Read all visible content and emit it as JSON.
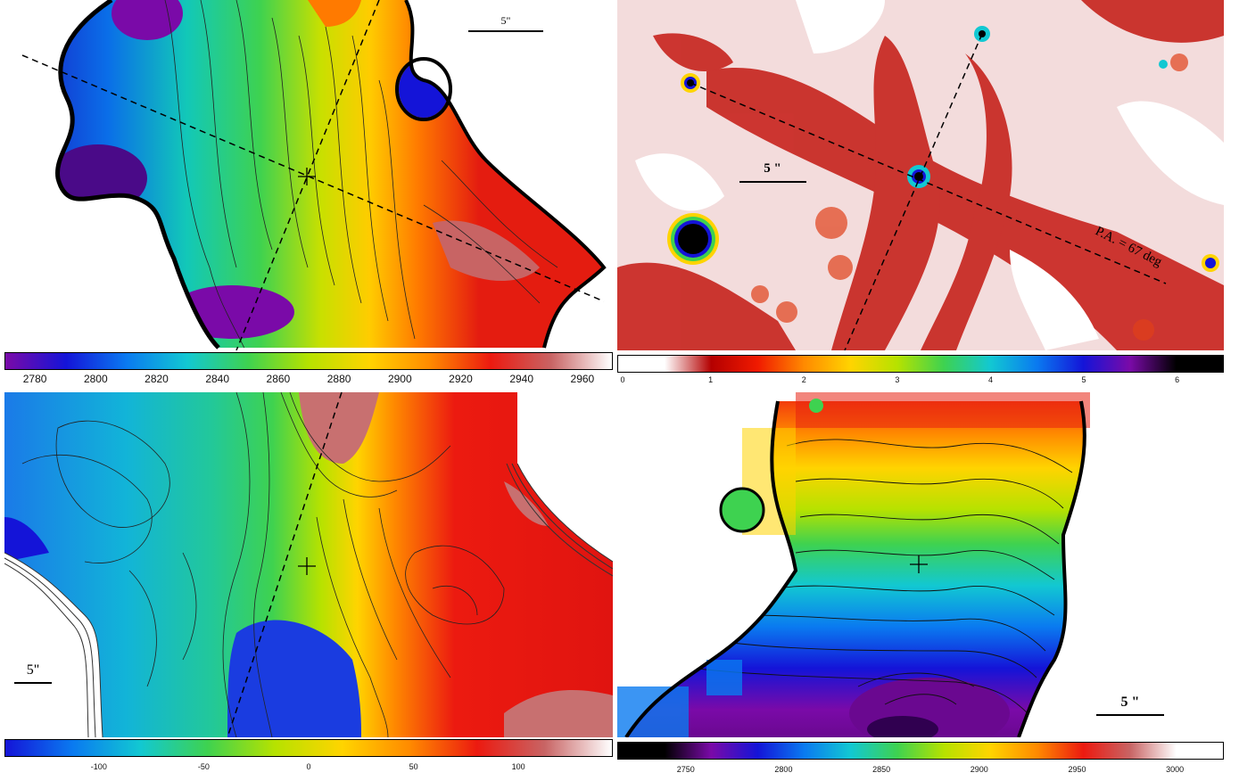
{
  "panels": [
    {
      "id": "top-left",
      "scale_label": "5\"",
      "colorbar": {
        "ticks": [
          "2780",
          "2800",
          "2820",
          "2840",
          "2860",
          "2880",
          "2900",
          "2920",
          "2940",
          "2960"
        ],
        "min": 2770,
        "max": 2970,
        "stops": [
          "#7a0aa8",
          "#1414d8",
          "#0a7af0",
          "#12c8d2",
          "#3ed250",
          "#b6e200",
          "#ffd400",
          "#ff8a00",
          "#ec1a10",
          "#c86464",
          "#ffffff"
        ]
      }
    },
    {
      "id": "top-right",
      "scale_label": "5 \"",
      "annotation": "P.A. = 67 deg",
      "colorbar": {
        "ticks": [
          "0",
          "1",
          "2",
          "3",
          "4",
          "5",
          "6"
        ],
        "min": 0,
        "max": 6.5,
        "stops": [
          "#ffffff",
          "#ffffff",
          "#b40000",
          "#f01a00",
          "#ff8a00",
          "#ffd400",
          "#b6e200",
          "#3ed250",
          "#12c8d2",
          "#0a7af0",
          "#1414d8",
          "#7a0aa8",
          "#000000",
          "#000000"
        ]
      }
    },
    {
      "id": "bottom-left",
      "scale_label": "5\"",
      "colorbar": {
        "ticks": [
          "-100",
          "-50",
          "0",
          "50",
          "100"
        ],
        "min": -145,
        "max": 145,
        "stops": [
          "#1414d8",
          "#0a7af0",
          "#12c8d2",
          "#3ed250",
          "#b6e200",
          "#ffd400",
          "#ff8a00",
          "#ec1a10",
          "#c86464",
          "#ffffff"
        ]
      }
    },
    {
      "id": "bottom-right",
      "scale_label": "5 \"",
      "colorbar": {
        "ticks": [
          "2750",
          "2800",
          "2850",
          "2900",
          "2950",
          "3000"
        ],
        "min": 2715,
        "max": 3025,
        "stops": [
          "#000000",
          "#000000",
          "#7a0aa8",
          "#1414d8",
          "#0a7af0",
          "#12c8d2",
          "#3ed250",
          "#b6e200",
          "#ffd400",
          "#ff8a00",
          "#ec1a10",
          "#c86464",
          "#ffffff",
          "#ffffff"
        ]
      }
    }
  ]
}
